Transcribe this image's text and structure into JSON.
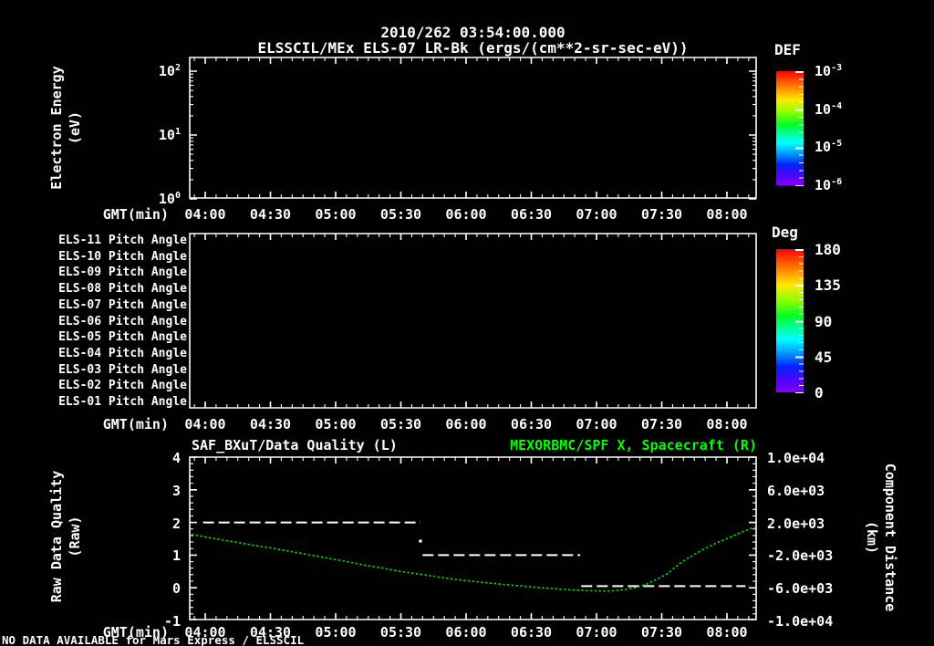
{
  "header": {
    "title": "2010/262 03:54:00.000",
    "subtitle": "ELSSCIL/MEx ELS-07 LR-Bk  (ergs/(cm**2-sr-sec-eV))"
  },
  "time_axis": {
    "label": "GMT(min)",
    "ticks": [
      "04:00",
      "04:30",
      "05:00",
      "05:30",
      "06:00",
      "06:30",
      "07:00",
      "07:30",
      "08:00"
    ]
  },
  "energy_panel": {
    "y_label_line1": "Electron Energy",
    "y_label_line2": "(eV)",
    "y_ticks": [
      {
        "base": "10",
        "exp": "2"
      },
      {
        "base": "10",
        "exp": "1"
      },
      {
        "base": "10",
        "exp": "0"
      }
    ],
    "colorbar": {
      "title": "DEF",
      "tick_labels": [
        {
          "base": "10",
          "exp": "-3"
        },
        {
          "base": "10",
          "exp": "-4"
        },
        {
          "base": "10",
          "exp": "-5"
        },
        {
          "base": "10",
          "exp": "-6"
        }
      ]
    }
  },
  "pitch_panel": {
    "rows": [
      "ELS-11 Pitch Angle",
      "ELS-10 Pitch Angle",
      "ELS-09 Pitch Angle",
      "ELS-08 Pitch Angle",
      "ELS-07 Pitch Angle",
      "ELS-06 Pitch Angle",
      "ELS-05 Pitch Angle",
      "ELS-04 Pitch Angle",
      "ELS-03 Pitch Angle",
      "ELS-02 Pitch Angle",
      "ELS-01 Pitch Angle"
    ],
    "colorbar": {
      "title": "Deg",
      "ticks": [
        "180",
        "135",
        "90",
        "45",
        "0"
      ]
    }
  },
  "quality_panel": {
    "title_left": "SAF_BXuT/Data Quality (L)",
    "title_right": "MEXORBMC/SPF X, Spacecraft (R)",
    "left_axis": {
      "label_line1": "Raw Data Quality",
      "label_line2": "(Raw)",
      "ticks": [
        "4",
        "3",
        "2",
        "1",
        "0",
        "-1"
      ]
    },
    "right_axis": {
      "label_line1": "Component Distance",
      "label_line2": "(km)",
      "ticks": [
        "1.0e+04",
        "6.0e+03",
        "2.0e+03",
        "-2.0e+03",
        "-6.0e+03",
        "-1.0e+04"
      ]
    }
  },
  "footer": {
    "no_data_message": "NO DATA AVAILABLE for Mars Express / ELSSCIL"
  },
  "colors": {
    "accent_green": "#00ff00",
    "curve_green": "#00d900",
    "foreground": "#ffffff",
    "background": "#000000"
  },
  "chart_data": [
    {
      "type": "heatmap",
      "title": "ELSSCIL/MEx ELS-07 LR-Bk",
      "units": "ergs/(cm**2-sr-sec-eV)",
      "xlabel": "GMT(min)",
      "ylabel": "Electron Energy (eV)",
      "y_scale": "log",
      "ylim": [
        1,
        100
      ],
      "x_ticks": [
        "04:00",
        "04:30",
        "05:00",
        "05:30",
        "06:00",
        "06:30",
        "07:00",
        "07:30",
        "08:00"
      ],
      "values": [],
      "note": "panel empty - no data available",
      "colorbar": {
        "label": "DEF",
        "scale": "log",
        "range": [
          1e-06,
          0.001
        ]
      }
    },
    {
      "type": "heatmap",
      "rows_top_to_bottom": [
        "ELS-11",
        "ELS-10",
        "ELS-09",
        "ELS-08",
        "ELS-07",
        "ELS-06",
        "ELS-05",
        "ELS-04",
        "ELS-03",
        "ELS-02",
        "ELS-01"
      ],
      "row_quantity": "Pitch Angle",
      "xlabel": "GMT(min)",
      "x_ticks": [
        "04:00",
        "04:30",
        "05:00",
        "05:30",
        "06:00",
        "06:30",
        "07:00",
        "07:30",
        "08:00"
      ],
      "values": [],
      "note": "panel empty - no data available",
      "colorbar": {
        "label": "Deg",
        "range": [
          0,
          180
        ],
        "ticks": [
          180,
          135,
          90,
          45,
          0
        ]
      }
    },
    {
      "type": "line",
      "title_left": "SAF_BXuT/Data Quality (L)",
      "title_right": "MEXORBMC/SPF X, Spacecraft (R)",
      "xlabel": "GMT(min)",
      "x_units": "minutes since 00:00 GMT",
      "xlim": [
        232.5,
        493.8
      ],
      "x_ticks_min": [
        240,
        270,
        300,
        330,
        360,
        390,
        420,
        450,
        480
      ],
      "left_axis": {
        "label": "Raw Data Quality (Raw)",
        "ylim": [
          -1,
          4
        ]
      },
      "right_axis": {
        "label": "Component Distance (km)",
        "ylim": [
          -10000,
          10000
        ]
      },
      "series": [
        {
          "name": "MEXORBMC/SPF X, Spacecraft",
          "axis": "right",
          "color": "#00d900",
          "style": "dotted",
          "points": [
            [
              233.7,
              500
            ],
            [
              240,
              170
            ],
            [
              247,
              -160
            ],
            [
              255,
              -510
            ],
            [
              262,
              -840
            ],
            [
              270,
              -1170
            ],
            [
              277,
              -1510
            ],
            [
              284,
              -1840
            ],
            [
              292,
              -2230
            ],
            [
              300,
              -2630
            ],
            [
              307,
              -2960
            ],
            [
              313,
              -3290
            ],
            [
              322,
              -3690
            ],
            [
              330,
              -4080
            ],
            [
              339,
              -4420
            ],
            [
              347,
              -4750
            ],
            [
              355,
              -5040
            ],
            [
              364,
              -5310
            ],
            [
              372,
              -5540
            ],
            [
              381,
              -5760
            ],
            [
              389,
              -5960
            ],
            [
              397,
              -6140
            ],
            [
              405,
              -6290
            ],
            [
              411,
              -6380
            ],
            [
              417,
              -6450
            ],
            [
              423,
              -6480
            ],
            [
              428,
              -6470
            ],
            [
              433,
              -6300
            ],
            [
              438,
              -6050
            ],
            [
              443,
              -5650
            ],
            [
              448,
              -5000
            ],
            [
              453,
              -4300
            ],
            [
              458,
              -3150
            ],
            [
              462,
              -2450
            ],
            [
              466,
              -1850
            ],
            [
              470,
              -1250
            ],
            [
              475,
              -600
            ],
            [
              480,
              -40
            ],
            [
              484,
              450
            ],
            [
              488,
              900
            ],
            [
              493,
              1400
            ]
          ]
        },
        {
          "name": "SAF_BXuT/Data Quality",
          "axis": "left",
          "color": "#ffffff",
          "style": "dashed",
          "segments": [
            {
              "value": 2.0,
              "t_start": 239,
              "t_end": 339
            },
            {
              "value": 1.0,
              "t_start": 340,
              "t_end": 412.5
            },
            {
              "value": 0.05,
              "t_start": 413,
              "t_end": 488.5
            }
          ],
          "isolated_points": [
            {
              "t": 339,
              "value": 1.43
            }
          ]
        }
      ]
    }
  ]
}
